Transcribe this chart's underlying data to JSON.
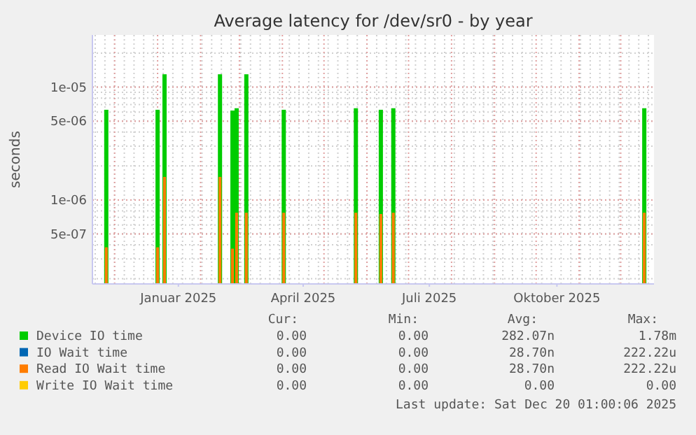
{
  "chart_data": {
    "type": "bar",
    "title": "Average latency for /dev/sr0 - by year",
    "ylabel": "seconds",
    "log": "y",
    "grid": true,
    "legend": "bottom",
    "x": [
      "2024-11-25",
      "2025-01-01",
      "2025-01-06",
      "2025-02-15",
      "2025-02-24",
      "2025-02-27",
      "2025-03-06",
      "2025-04-02",
      "2025-05-24",
      "2025-06-11",
      "2025-06-20",
      "2025-12-18"
    ],
    "xlim": [
      "2024-11-15",
      "2025-12-25"
    ],
    "xticks": [
      {
        "value": "2025-01-16",
        "label": "Januar 2025"
      },
      {
        "value": "2025-04-16",
        "label": "April 2025"
      },
      {
        "value": "2025-07-16",
        "label": "Juli 2025"
      },
      {
        "value": "2025-10-16",
        "label": "Oktober 2025"
      }
    ],
    "ylim": [
      1.8e-07,
      2.9e-05
    ],
    "yticks": [
      {
        "value": 5e-07,
        "label": "5e-07"
      },
      {
        "value": 1e-06,
        "label": "1e-06"
      },
      {
        "value": 5e-06,
        "label": "5e-06"
      },
      {
        "value": 1e-05,
        "label": "1e-05"
      }
    ],
    "series": [
      {
        "name": "Device IO time",
        "color": "#00cc00",
        "values": [
          6.3e-06,
          6.3e-06,
          1.3e-05,
          1.3e-05,
          6.2e-06,
          6.5e-06,
          1.3e-05,
          6.3e-06,
          6.5e-06,
          6.3e-06,
          6.5e-06,
          6.5e-06
        ]
      },
      {
        "name": "IO Wait time",
        "color": "#0066b3",
        "values": [
          null,
          null,
          null,
          null,
          null,
          null,
          null,
          null,
          null,
          null,
          null,
          null
        ]
      },
      {
        "name": "Read IO Wait time",
        "color": "#ff7d00",
        "values": [
          3.8e-07,
          3.8e-07,
          1.6e-06,
          1.6e-06,
          3.7e-07,
          7.7e-07,
          7.7e-07,
          7.7e-07,
          7.7e-07,
          7.5e-07,
          7.7e-07,
          7.7e-07
        ]
      },
      {
        "name": "Write IO Wait time",
        "color": "#ffcc00",
        "values": [
          null,
          null,
          null,
          null,
          null,
          null,
          null,
          null,
          null,
          null,
          null,
          null
        ]
      }
    ],
    "annotations": [
      "Cur:",
      "Min:",
      "Avg:",
      "Max:",
      "0.00",
      "0.00",
      "282.07n",
      "1.78m",
      "0.00",
      "0.00",
      "28.70n",
      "222.22u",
      "0.00",
      "0.00",
      "28.70n",
      "222.22u",
      "0.00",
      "0.00",
      "0.00",
      "0.00",
      "Last update: Sat Dec 20 01:00:06 2025"
    ]
  }
}
